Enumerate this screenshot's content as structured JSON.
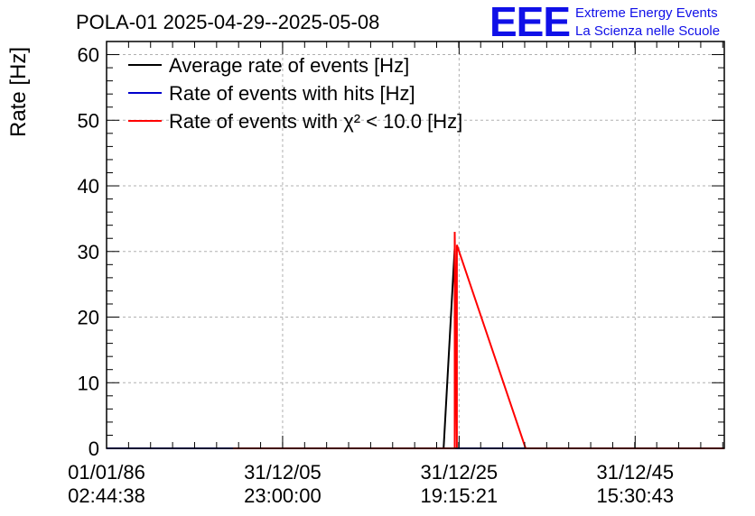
{
  "chart_data": {
    "type": "line",
    "title": "POLA-01 2025-04-29--2025-05-08",
    "ylabel": "Rate [Hz]",
    "xlabel": "",
    "ylim": [
      0,
      62
    ],
    "yticks": [
      0,
      10,
      20,
      30,
      40,
      50,
      60
    ],
    "xlim": [
      0,
      1393
    ],
    "x_tick_positions": [
      0,
      397,
      795,
      1192
    ],
    "x_tick_labels": [
      [
        "01/01/86",
        "02:44:38"
      ],
      [
        "31/12/05",
        "23:00:00"
      ],
      [
        "31/12/25",
        "19:15:21"
      ],
      [
        "31/12/45",
        "15:30:43"
      ]
    ],
    "grid": true,
    "legend_position": "top-left",
    "series": [
      {
        "name": "Average rate of events [Hz]",
        "color": "#000000",
        "x": [
          0,
          285,
          760,
          785
        ],
        "y": [
          0,
          0,
          0,
          30.5
        ]
      },
      {
        "name": "Rate of events with hits [Hz]",
        "color": "#0000cc",
        "x": [
          0,
          1393
        ],
        "y": [
          0,
          0
        ]
      },
      {
        "name": "Rate of events with χ² < 10.0 [Hz]",
        "color": "#ff0000",
        "x": [
          285,
          785,
          785,
          790,
          790,
          945,
          1393
        ],
        "y": [
          0,
          0,
          33,
          0,
          31,
          0,
          0
        ]
      }
    ]
  },
  "logo": {
    "mark": "EEE",
    "line1": "Extreme Energy Events",
    "line2": "La Scienza nelle Scuole"
  }
}
